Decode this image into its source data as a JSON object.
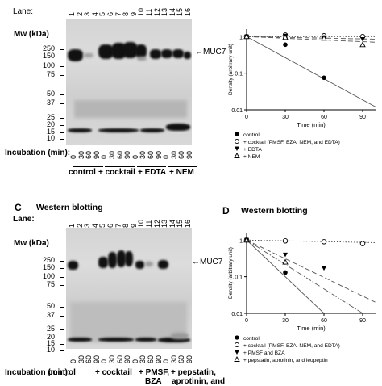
{
  "top": {
    "lane_label": "Lane:",
    "lanes": [
      "1",
      "2",
      "3",
      "4",
      "5",
      "6",
      "7",
      "8",
      "9",
      "10",
      "11",
      "12",
      "13",
      "14",
      "15",
      "16"
    ],
    "mw_label": "Mw (kDa)",
    "mw_markers": [
      "250",
      "150",
      "100",
      "75",
      "50",
      "37",
      "25",
      "20",
      "15",
      "10"
    ],
    "muc7_label": "MUC7",
    "incubation_label": "Incubation (min):",
    "times": [
      "0",
      "30",
      "60",
      "90",
      "0",
      "30",
      "60",
      "90",
      "0",
      "30",
      "60",
      "90",
      "0",
      "30",
      "60",
      "90"
    ],
    "groups": [
      "control",
      "+ cocktail",
      "+ EDTA",
      "+ NEM"
    ]
  },
  "panel_b": {
    "ylabel": "Density (arbitrary unit)",
    "xlabel": "Time (min)",
    "yticks": [
      "1",
      "0.1",
      "0.01"
    ],
    "xticks": [
      "0",
      "30",
      "60",
      "90"
    ],
    "legend": [
      "control",
      "+ cocktail (PMSF, BZA, NEM, and EDTA)",
      "+ EDTA",
      "+ NEM"
    ]
  },
  "panel_c": {
    "letter": "C",
    "title": "Western blotting",
    "lane_label": "Lane:",
    "lanes": [
      "1",
      "2",
      "3",
      "4",
      "5",
      "6",
      "7",
      "8",
      "9",
      "10",
      "11",
      "12",
      "13",
      "14",
      "15",
      "16"
    ],
    "mw_label": "Mw (kDa)",
    "mw_markers": [
      "250",
      "150",
      "100",
      "75",
      "50",
      "37",
      "25",
      "20",
      "15",
      "10"
    ],
    "muc7_label": "MUC7",
    "incubation_label": "Incubation (min):",
    "times": [
      "0",
      "30",
      "60",
      "90",
      "0",
      "30",
      "60",
      "90",
      "0",
      "30",
      "60",
      "90",
      "0",
      "30",
      "60",
      "90"
    ],
    "groups": [
      "control",
      "+ cocktail",
      "+ PMSF,",
      "+ pepstatin,"
    ],
    "groups_line2": [
      "BZA",
      "aprotinin, and"
    ]
  },
  "panel_d": {
    "letter": "D",
    "title": "Western blotting",
    "ylabel": "Density (arbitrary unit)",
    "xlabel": "Time (min)",
    "yticks": [
      "1",
      "0.1",
      "0.01"
    ],
    "xticks": [
      "0",
      "30",
      "60",
      "90"
    ],
    "legend": [
      "control",
      "+ cocktail (PMSF, BZA, NEM, and EDTA)",
      "+ PMSF and BZA",
      "+ pepstatin, aprotinin, and leupeptin"
    ]
  },
  "chart_data": [
    {
      "type": "scatter",
      "xlabel": "Time (min)",
      "ylabel": "Density (arbitrary unit)",
      "xlim": [
        0,
        100
      ],
      "ylim": [
        0.01,
        1.6
      ],
      "yscale": "log",
      "series": [
        {
          "name": "control",
          "marker": "filled-circle",
          "x": [
            0,
            30,
            60
          ],
          "y": [
            1,
            0.6,
            0.075
          ],
          "fit": [
            [
              0,
              1
            ],
            [
              100,
              0.012
            ]
          ],
          "line": "solid"
        },
        {
          "name": "+ cocktail (PMSF, BZA, NEM, and EDTA)",
          "marker": "open-circle",
          "x": [
            0,
            30,
            60,
            90
          ],
          "y": [
            1,
            1.1,
            1.05,
            1.0
          ],
          "fit": [
            [
              0,
              1
            ],
            [
              100,
              1.0
            ]
          ],
          "line": "dotted"
        },
        {
          "name": "+ EDTA",
          "marker": "filled-triangle",
          "x": [
            0,
            30,
            60,
            90
          ],
          "y": [
            1,
            1.05,
            0.95,
            0.85
          ],
          "fit": [
            [
              0,
              1
            ],
            [
              100,
              0.85
            ]
          ],
          "line": "dashed"
        },
        {
          "name": "+ NEM",
          "marker": "open-triangle",
          "x": [
            0,
            30,
            60,
            90
          ],
          "y": [
            1,
            0.95,
            0.9,
            0.6
          ],
          "fit": [
            [
              0,
              1
            ],
            [
              100,
              0.7
            ]
          ],
          "line": "dashed"
        }
      ]
    },
    {
      "type": "scatter",
      "xlabel": "Time (min)",
      "ylabel": "Density (arbitrary unit)",
      "xlim": [
        0,
        100
      ],
      "ylim": [
        0.01,
        1.6
      ],
      "yscale": "log",
      "series": [
        {
          "name": "control",
          "marker": "filled-circle",
          "x": [
            0,
            30
          ],
          "y": [
            1,
            0.13
          ],
          "fit": [
            [
              0,
              1
            ],
            [
              60,
              0.01
            ]
          ],
          "line": "solid"
        },
        {
          "name": "+ cocktail (PMSF, BZA, NEM, and EDTA)",
          "marker": "open-circle",
          "x": [
            0,
            30,
            60,
            90
          ],
          "y": [
            1,
            0.95,
            0.9,
            0.8
          ],
          "fit": [
            [
              0,
              1
            ],
            [
              100,
              0.85
            ]
          ],
          "line": "dotted"
        },
        {
          "name": "+ PMSF and BZA",
          "marker": "filled-triangle",
          "x": [
            0,
            30,
            60
          ],
          "y": [
            1,
            0.4,
            0.17
          ],
          "fit": [
            [
              0,
              1
            ],
            [
              100,
              0.02
            ]
          ],
          "line": "dashed"
        },
        {
          "name": "+ pepstatin, aprotinin, and leupeptin",
          "marker": "open-triangle",
          "x": [
            0,
            30
          ],
          "y": [
            1,
            0.25
          ],
          "fit": [
            [
              0,
              1
            ],
            [
              90,
              0.01
            ]
          ],
          "line": "dashdot"
        }
      ]
    }
  ]
}
